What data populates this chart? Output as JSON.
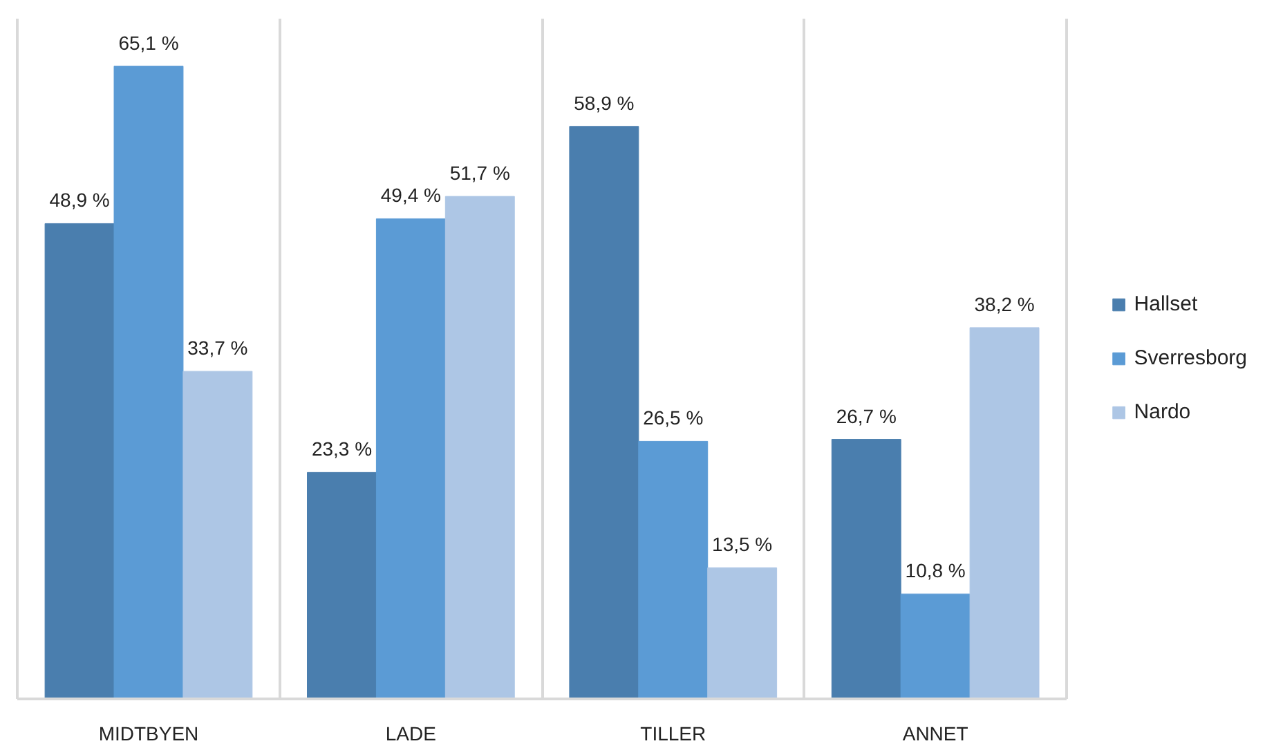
{
  "chart_data": {
    "type": "bar",
    "categories": [
      "MIDTBYEN",
      "LADE",
      "TILLER",
      "ANNET"
    ],
    "series": [
      {
        "name": "Hallset",
        "color": "#4a7eae",
        "values": [
          48.9,
          23.3,
          58.9,
          26.7
        ],
        "value_labels": [
          "48,9 %",
          "23,3 %",
          "58,9 %",
          "26,7 %"
        ]
      },
      {
        "name": "Sverresborg",
        "color": "#5b9bd5",
        "values": [
          65.1,
          49.4,
          26.5,
          10.8
        ],
        "value_labels": [
          "65,1 %",
          "49,4 %",
          "26,5 %",
          "10,8 %"
        ]
      },
      {
        "name": "Nardo",
        "color": "#adc6e5",
        "values": [
          33.7,
          51.7,
          13.5,
          38.2
        ],
        "value_labels": [
          "33,7 %",
          "51,7 %",
          "13,5 %",
          "38,2 %"
        ]
      }
    ],
    "grid": "x",
    "legend": "right"
  }
}
